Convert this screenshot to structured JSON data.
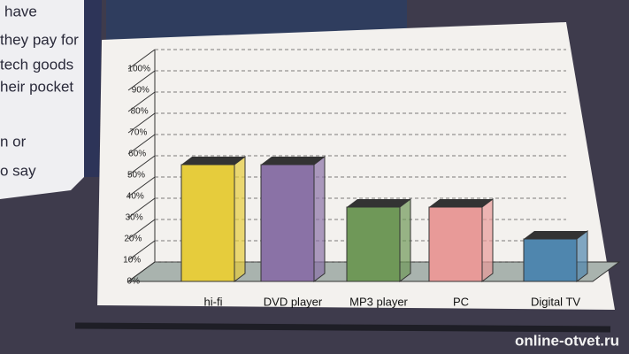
{
  "chart_data": {
    "type": "bar3d",
    "categories": [
      "hi-fi",
      "DVD player",
      "MP3 player",
      "PC",
      "Digital TV"
    ],
    "values": [
      55,
      55,
      35,
      35,
      20
    ],
    "colors": [
      "#e6cc3c",
      "#8a72a6",
      "#6f9858",
      "#e89a98",
      "#4f86ae"
    ],
    "ylim": [
      0,
      100
    ],
    "yticks": [
      {
        "value": 0,
        "label": "0%"
      },
      {
        "value": 10,
        "label": "10%"
      },
      {
        "value": 20,
        "label": "20%"
      },
      {
        "value": 30,
        "label": "30%"
      },
      {
        "value": 40,
        "label": "40%"
      },
      {
        "value": 50,
        "label": "50%"
      },
      {
        "value": 60,
        "label": "60%"
      },
      {
        "value": 70,
        "label": "70%"
      },
      {
        "value": 80,
        "label": "80%"
      },
      {
        "value": 90,
        "label": "90%"
      },
      {
        "value": 100,
        "label": "100%"
      }
    ],
    "grid": true
  },
  "side_text": [
    "have",
    "they pay for",
    "tech goods",
    "heir pocket",
    "n or",
    "o say"
  ],
  "watermark": "online-otvet.ru"
}
